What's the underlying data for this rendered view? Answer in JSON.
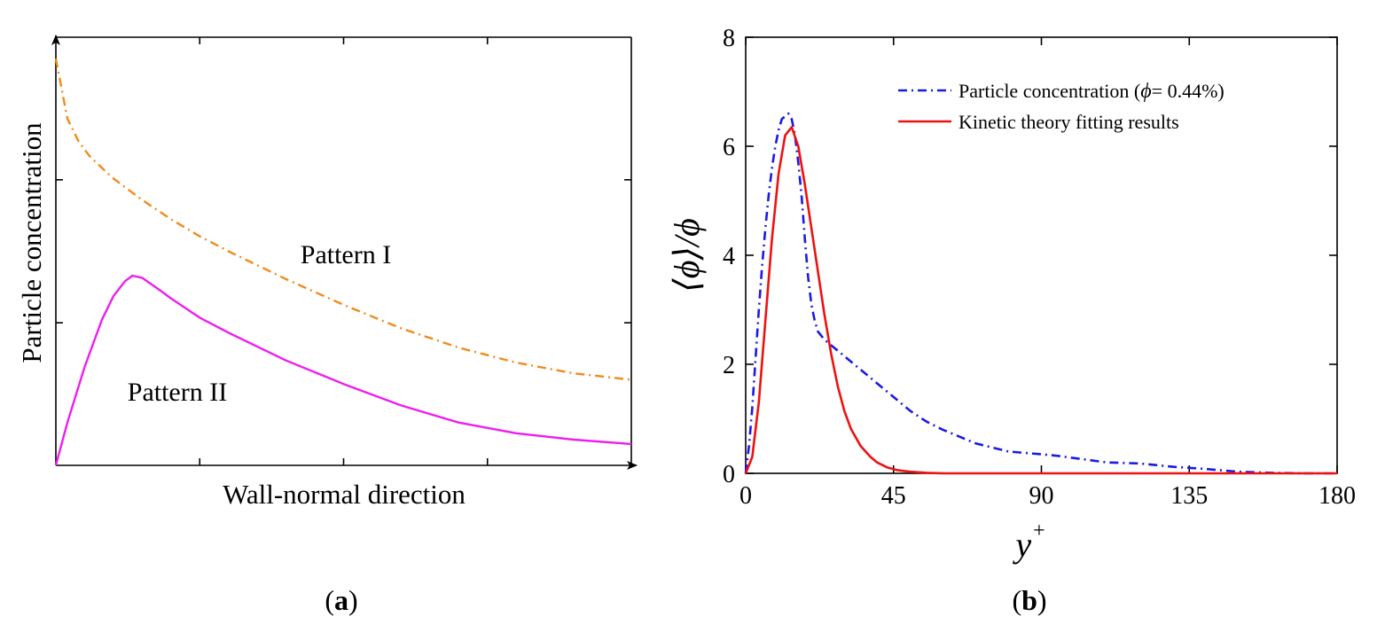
{
  "panels": {
    "a": {
      "label_open": "(",
      "label_letter": "a",
      "label_close": ")"
    },
    "b": {
      "label_open": "(",
      "label_letter": "b",
      "label_close": ")"
    }
  },
  "chart_data": [
    {
      "type": "line",
      "panel": "a",
      "title": "",
      "xlabel": "Wall-normal direction",
      "ylabel": "Particle concentration",
      "xlim": [
        0,
        100
      ],
      "ylim": [
        0,
        100
      ],
      "x_ticks": [
        25,
        50,
        75
      ],
      "y_ticks": [
        33.3,
        66.7
      ],
      "grid": false,
      "annotations": [
        "Pattern I",
        "Pattern II"
      ],
      "series": [
        {
          "name": "Pattern I",
          "color": "#F28A1C",
          "style": "dash-dot",
          "x": [
            0,
            1,
            2,
            4,
            6,
            10,
            15,
            20,
            25,
            30,
            40,
            50,
            60,
            70,
            80,
            90,
            100
          ],
          "y": [
            95,
            88,
            81,
            75.5,
            72,
            67,
            62,
            57.5,
            53.5,
            50,
            43.5,
            37.5,
            32,
            27.5,
            24,
            21.5,
            20
          ]
        },
        {
          "name": "Pattern II",
          "color": "#EE1EEE",
          "style": "solid",
          "x": [
            0,
            2,
            5,
            8,
            10,
            12,
            13.3,
            15,
            18,
            20,
            25,
            30,
            40,
            50,
            60,
            70,
            80,
            90,
            100
          ],
          "y": [
            0,
            10,
            23,
            34,
            39.5,
            43,
            44.3,
            43.8,
            41,
            39,
            34.5,
            31,
            24.5,
            19,
            14,
            10,
            7.5,
            6,
            5
          ]
        }
      ]
    },
    {
      "type": "line",
      "panel": "b",
      "title": "",
      "xlabel": "y",
      "xlabel_superscript": "+",
      "ylabel": "⟨ϕ⟩/ϕ",
      "xlim": [
        0,
        180
      ],
      "ylim": [
        0,
        8
      ],
      "x_ticks": [
        0,
        45,
        90,
        135,
        180
      ],
      "y_ticks": [
        0,
        2,
        4,
        6,
        8
      ],
      "grid": false,
      "legend_position": "top-right",
      "legend": [
        {
          "text": "Particle concentration  (",
          "symbol": "ϕ",
          "suffix": "= 0.44%)"
        },
        {
          "text": "Kinetic theory fitting results"
        }
      ],
      "series": [
        {
          "name": "Particle concentration (ϕ= 0.44%)",
          "color": "#1A1AE6",
          "style": "dash-dot",
          "x": [
            0,
            1,
            2,
            3,
            4,
            5,
            6,
            7,
            8,
            9,
            10,
            11,
            12,
            13,
            14,
            15,
            16,
            17,
            18,
            19,
            20,
            21,
            22,
            24,
            26,
            28,
            30,
            35,
            40,
            45,
            50,
            55,
            60,
            70,
            80,
            90,
            95,
            100,
            110,
            120,
            130,
            140,
            150,
            160,
            170,
            180
          ],
          "y": [
            0,
            0.5,
            1.2,
            2.1,
            3.0,
            3.8,
            4.5,
            5.1,
            5.6,
            6.0,
            6.3,
            6.5,
            6.55,
            6.6,
            6.5,
            6.2,
            5.7,
            5.1,
            4.3,
            3.6,
            3.1,
            2.8,
            2.6,
            2.45,
            2.35,
            2.25,
            2.15,
            1.9,
            1.65,
            1.4,
            1.15,
            0.95,
            0.8,
            0.55,
            0.4,
            0.35,
            0.32,
            0.28,
            0.2,
            0.18,
            0.12,
            0.08,
            0.03,
            0.01,
            0.0,
            0.0
          ]
        },
        {
          "name": "Kinetic theory fitting results",
          "color": "#EE1111",
          "style": "solid",
          "x": [
            0,
            2,
            4,
            6,
            8,
            10,
            12,
            14,
            16,
            18,
            20,
            22,
            24,
            26,
            28,
            30,
            32,
            35,
            38,
            40,
            43,
            46,
            50,
            55,
            60,
            70,
            80,
            100,
            120,
            140,
            160,
            180
          ],
          "y": [
            0,
            0.3,
            1.3,
            2.8,
            4.3,
            5.5,
            6.2,
            6.35,
            6.0,
            5.3,
            4.5,
            3.7,
            2.9,
            2.2,
            1.6,
            1.15,
            0.82,
            0.5,
            0.3,
            0.2,
            0.11,
            0.06,
            0.03,
            0.01,
            0,
            0,
            0,
            0,
            0,
            0,
            0,
            0
          ]
        }
      ]
    }
  ]
}
